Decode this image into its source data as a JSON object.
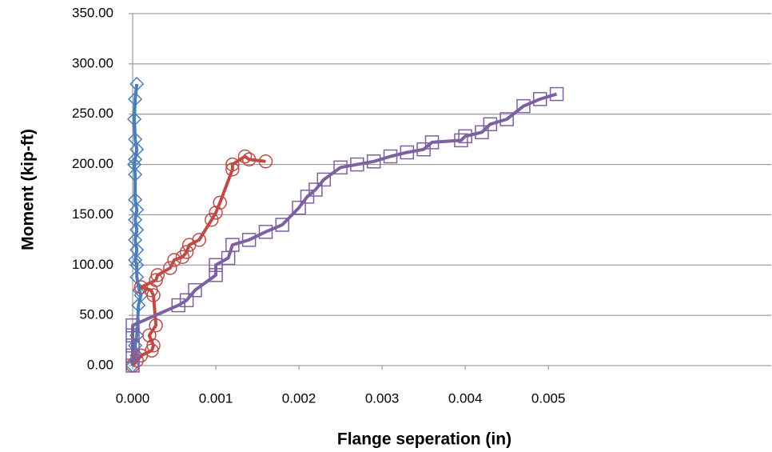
{
  "chart_data": {
    "type": "scatter",
    "x_label": "Flange seperation (in)",
    "y_label": "Moment (kip-ft)",
    "xlim": [
      0,
      0.00768
    ],
    "ylim": [
      0,
      350
    ],
    "xticks": [
      {
        "value": 0,
        "label": "0.000"
      },
      {
        "value": 0.001,
        "label": "0.001"
      },
      {
        "value": 0.002,
        "label": "0.002"
      },
      {
        "value": 0.003,
        "label": "0.003"
      },
      {
        "value": 0.004,
        "label": "0.004"
      },
      {
        "value": 0.005,
        "label": "0.005"
      }
    ],
    "yticks": [
      {
        "value": 0,
        "label": "0.00"
      },
      {
        "value": 50,
        "label": "50.00"
      },
      {
        "value": 100,
        "label": "100.00"
      },
      {
        "value": 150,
        "label": "150.00"
      },
      {
        "value": 200,
        "label": "200.00"
      },
      {
        "value": 250,
        "label": "250.00"
      },
      {
        "value": 300,
        "label": "300.00"
      },
      {
        "value": 350,
        "label": "350.00"
      }
    ],
    "grid": true,
    "series": [
      {
        "color": "#4a7ebb",
        "marker": "diamond",
        "x": [
          0,
          5e-05,
          3e-05,
          5e-05,
          7e-05,
          0.0001,
          8e-05,
          5e-05,
          5e-05,
          3e-05,
          5e-05,
          3e-05,
          5e-05,
          3e-05,
          5e-05,
          3e-05,
          3e-05,
          2e-05,
          3e-05,
          5e-05,
          3e-05,
          2e-05,
          3e-05,
          5e-05
        ],
        "values": [
          0,
          10,
          20,
          30,
          60,
          70,
          75,
          88,
          100,
          105,
          115,
          125,
          135,
          145,
          155,
          165,
          190,
          200,
          205,
          215,
          225,
          245,
          265,
          280
        ]
      },
      {
        "color": "#be4b48",
        "marker": "circle",
        "x": [
          0,
          5e-05,
          0.0001,
          0.00023,
          0.00025,
          0.0002,
          0.00028,
          0.00025,
          0.00022,
          0.0001,
          0.00028,
          0.0003,
          0.00045,
          0.0005,
          0.0006,
          0.00065,
          0.00068,
          0.0008,
          0.00095,
          0.001,
          0.00105,
          0.0012,
          0.0012,
          0.00135,
          0.0014,
          0.0016
        ],
        "values": [
          0,
          5,
          10,
          15,
          20,
          30,
          40,
          70,
          75,
          78,
          85,
          90,
          97,
          105,
          108,
          113,
          120,
          125,
          145,
          152,
          162,
          195,
          200,
          208,
          205,
          203
        ]
      },
      {
        "color": "#7d60a0",
        "marker": "square",
        "x": [
          0,
          0,
          0,
          0,
          0,
          0.00055,
          0.00065,
          0.00075,
          0.001,
          0.001,
          0.00115,
          0.0012,
          0.0014,
          0.0016,
          0.0018,
          0.002,
          0.0021,
          0.0022,
          0.0023,
          0.0025,
          0.0027,
          0.0029,
          0.0031,
          0.0033,
          0.0035,
          0.0036,
          0.00395,
          0.004,
          0.0042,
          0.0043,
          0.0045,
          0.0047,
          0.0049,
          0.0051
        ],
        "values": [
          0,
          10,
          20,
          30,
          40,
          60,
          65,
          75,
          90,
          100,
          107,
          120,
          125,
          133,
          140,
          157,
          168,
          175,
          185,
          197,
          200,
          203,
          208,
          212,
          215,
          222,
          224,
          228,
          232,
          240,
          245,
          258,
          265,
          270
        ]
      }
    ]
  }
}
